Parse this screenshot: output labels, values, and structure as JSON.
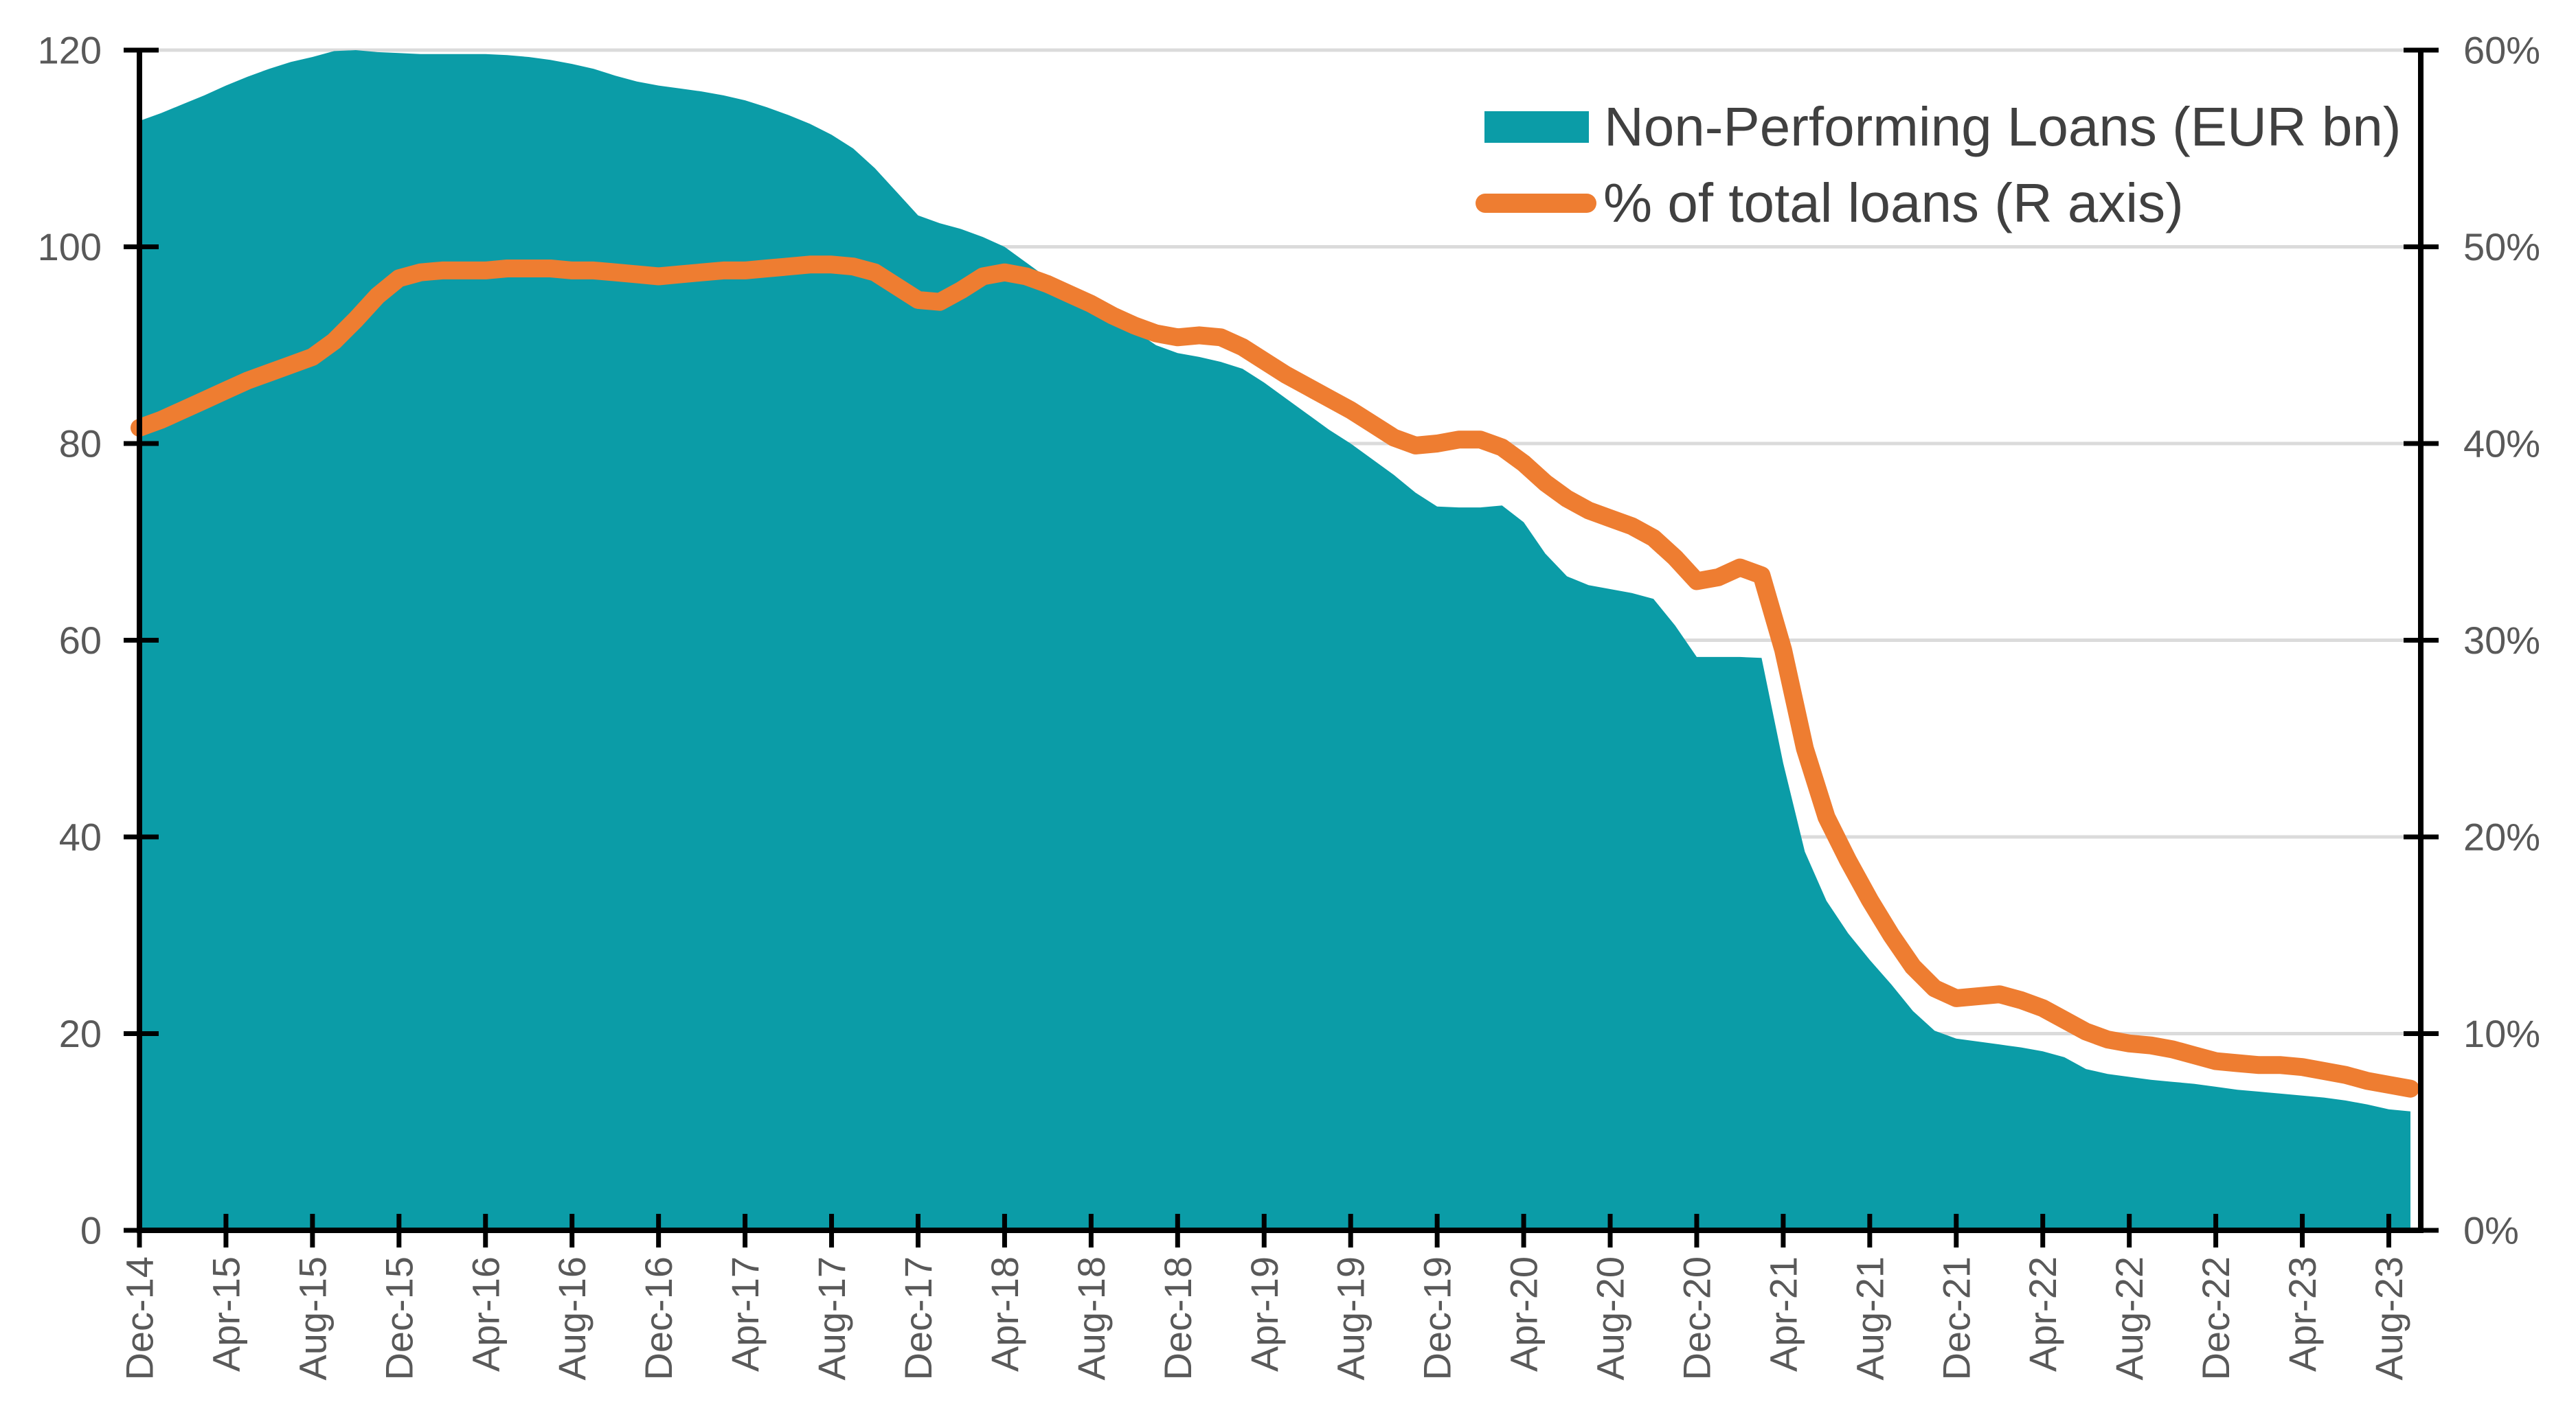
{
  "chart_data": {
    "type": "area+line combo",
    "title": "",
    "x_unit": "monthly, Dec-14 through Sep-23",
    "n_points": 106,
    "x_tick_every_n_points": 4,
    "x_tick_labels": [
      "Dec-14",
      "Apr-15",
      "Aug-15",
      "Dec-15",
      "Apr-16",
      "Aug-16",
      "Dec-16",
      "Apr-17",
      "Aug-17",
      "Dec-17",
      "Apr-18",
      "Aug-18",
      "Dec-18",
      "Apr-19",
      "Aug-19",
      "Dec-19",
      "Apr-20",
      "Aug-20",
      "Dec-20",
      "Apr-21",
      "Aug-21",
      "Dec-21",
      "Apr-22",
      "Aug-22",
      "Dec-22",
      "Apr-23",
      "Aug-23"
    ],
    "left_axis": {
      "min": 0,
      "max": 120,
      "tick_labels": [
        "0",
        "20",
        "40",
        "60",
        "80",
        "100",
        "120"
      ]
    },
    "right_axis": {
      "min": 0,
      "max": 60,
      "tick_labels": [
        "0%",
        "10%",
        "20%",
        "30%",
        "40%",
        "50%",
        "60%"
      ]
    },
    "grid": true,
    "legend_position": "top-right-inside",
    "series": [
      {
        "name": "Non-Performing Loans (EUR bn)",
        "type": "area",
        "axis": "left",
        "color": "#0B9CA7",
        "values": [
          112.8,
          113.6,
          114.5,
          115.4,
          116.4,
          117.3,
          118.1,
          118.8,
          119.3,
          119.9,
          120.0,
          119.8,
          119.7,
          119.6,
          119.6,
          119.6,
          119.6,
          119.5,
          119.3,
          119.0,
          118.6,
          118.1,
          117.4,
          116.8,
          116.4,
          116.1,
          115.8,
          115.4,
          114.9,
          114.2,
          113.4,
          112.5,
          111.4,
          110.0,
          108.0,
          105.6,
          103.2,
          102.4,
          101.8,
          101.0,
          100.0,
          98.4,
          96.8,
          95.6,
          94.6,
          93.0,
          91.5,
          90.0,
          89.2,
          88.8,
          88.3,
          87.6,
          86.2,
          84.6,
          83.0,
          81.4,
          80.0,
          78.4,
          76.8,
          75.0,
          73.6,
          73.5,
          73.5,
          73.7,
          72.0,
          68.8,
          66.5,
          65.6,
          65.2,
          64.8,
          64.2,
          61.5,
          58.3,
          58.3,
          58.3,
          58.2,
          47.5,
          38.5,
          33.5,
          30.2,
          27.5,
          25.0,
          22.3,
          20.3,
          19.5,
          19.2,
          18.9,
          18.6,
          18.2,
          17.6,
          16.4,
          15.9,
          15.6,
          15.3,
          15.1,
          14.9,
          14.6,
          14.3,
          14.1,
          13.9,
          13.7,
          13.5,
          13.2,
          12.8,
          12.3,
          12.1
        ]
      },
      {
        "name": "% of total loans (R axis)",
        "type": "line",
        "axis": "right",
        "color": "#EE7D31",
        "values": [
          40.8,
          41.2,
          41.7,
          42.2,
          42.7,
          43.2,
          43.6,
          44.0,
          44.4,
          45.2,
          46.3,
          47.5,
          48.4,
          48.7,
          48.8,
          48.8,
          48.8,
          48.9,
          48.9,
          48.9,
          48.8,
          48.8,
          48.7,
          48.6,
          48.5,
          48.6,
          48.7,
          48.8,
          48.8,
          48.9,
          49.0,
          49.1,
          49.1,
          49.0,
          48.7,
          48.0,
          47.3,
          47.2,
          47.8,
          48.5,
          48.7,
          48.5,
          48.1,
          47.6,
          47.1,
          46.5,
          46.0,
          45.6,
          45.4,
          45.5,
          45.4,
          44.9,
          44.2,
          43.5,
          42.9,
          42.3,
          41.7,
          41.0,
          40.3,
          39.9,
          40.0,
          40.2,
          40.2,
          39.8,
          39.0,
          38.0,
          37.2,
          36.6,
          36.2,
          35.8,
          35.2,
          34.2,
          33.0,
          33.2,
          33.7,
          33.3,
          29.5,
          24.5,
          21.0,
          18.8,
          16.8,
          15.0,
          13.4,
          12.3,
          11.8,
          11.9,
          12.0,
          11.7,
          11.3,
          10.7,
          10.1,
          9.7,
          9.5,
          9.4,
          9.2,
          8.9,
          8.6,
          8.5,
          8.4,
          8.4,
          8.3,
          8.1,
          7.9,
          7.6,
          7.4,
          7.2
        ]
      }
    ]
  },
  "legend": {
    "items": [
      {
        "label": "Non-Performing Loans (EUR bn)",
        "swatch": "rect",
        "color": "#0B9CA7"
      },
      {
        "label": "% of total loans (R axis)",
        "swatch": "line",
        "color": "#EE7D31"
      }
    ]
  },
  "colors": {
    "teal": "#0B9CA7",
    "orange": "#EE7D31",
    "gridline": "#DBDBDB",
    "axis": "#000000",
    "tick_label": "#595959",
    "legend_text": "#404040",
    "background": "#FFFFFF"
  }
}
